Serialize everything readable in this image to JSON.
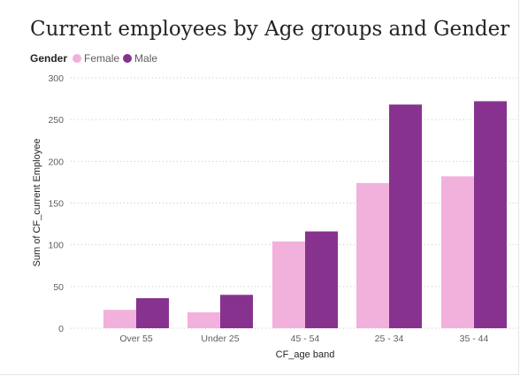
{
  "chart_data": {
    "type": "bar",
    "title": "Current employees by Age groups and Gender",
    "xlabel": "CF_age band",
    "ylabel": "Sum of CF_current Employee",
    "legend_title": "Gender",
    "legend_position": "top-left",
    "grid": true,
    "ylim": [
      0,
      300
    ],
    "yticks": [
      0,
      50,
      100,
      150,
      200,
      250,
      300
    ],
    "categories": [
      "Over 55",
      "Under 25",
      "45 - 54",
      "25 - 34",
      "35 - 44"
    ],
    "series": [
      {
        "name": "Female",
        "color": "#f2b1dc",
        "values": [
          22,
          19,
          104,
          174,
          182
        ]
      },
      {
        "name": "Male",
        "color": "#88328f",
        "values": [
          36,
          40,
          116,
          268,
          272
        ]
      }
    ]
  }
}
